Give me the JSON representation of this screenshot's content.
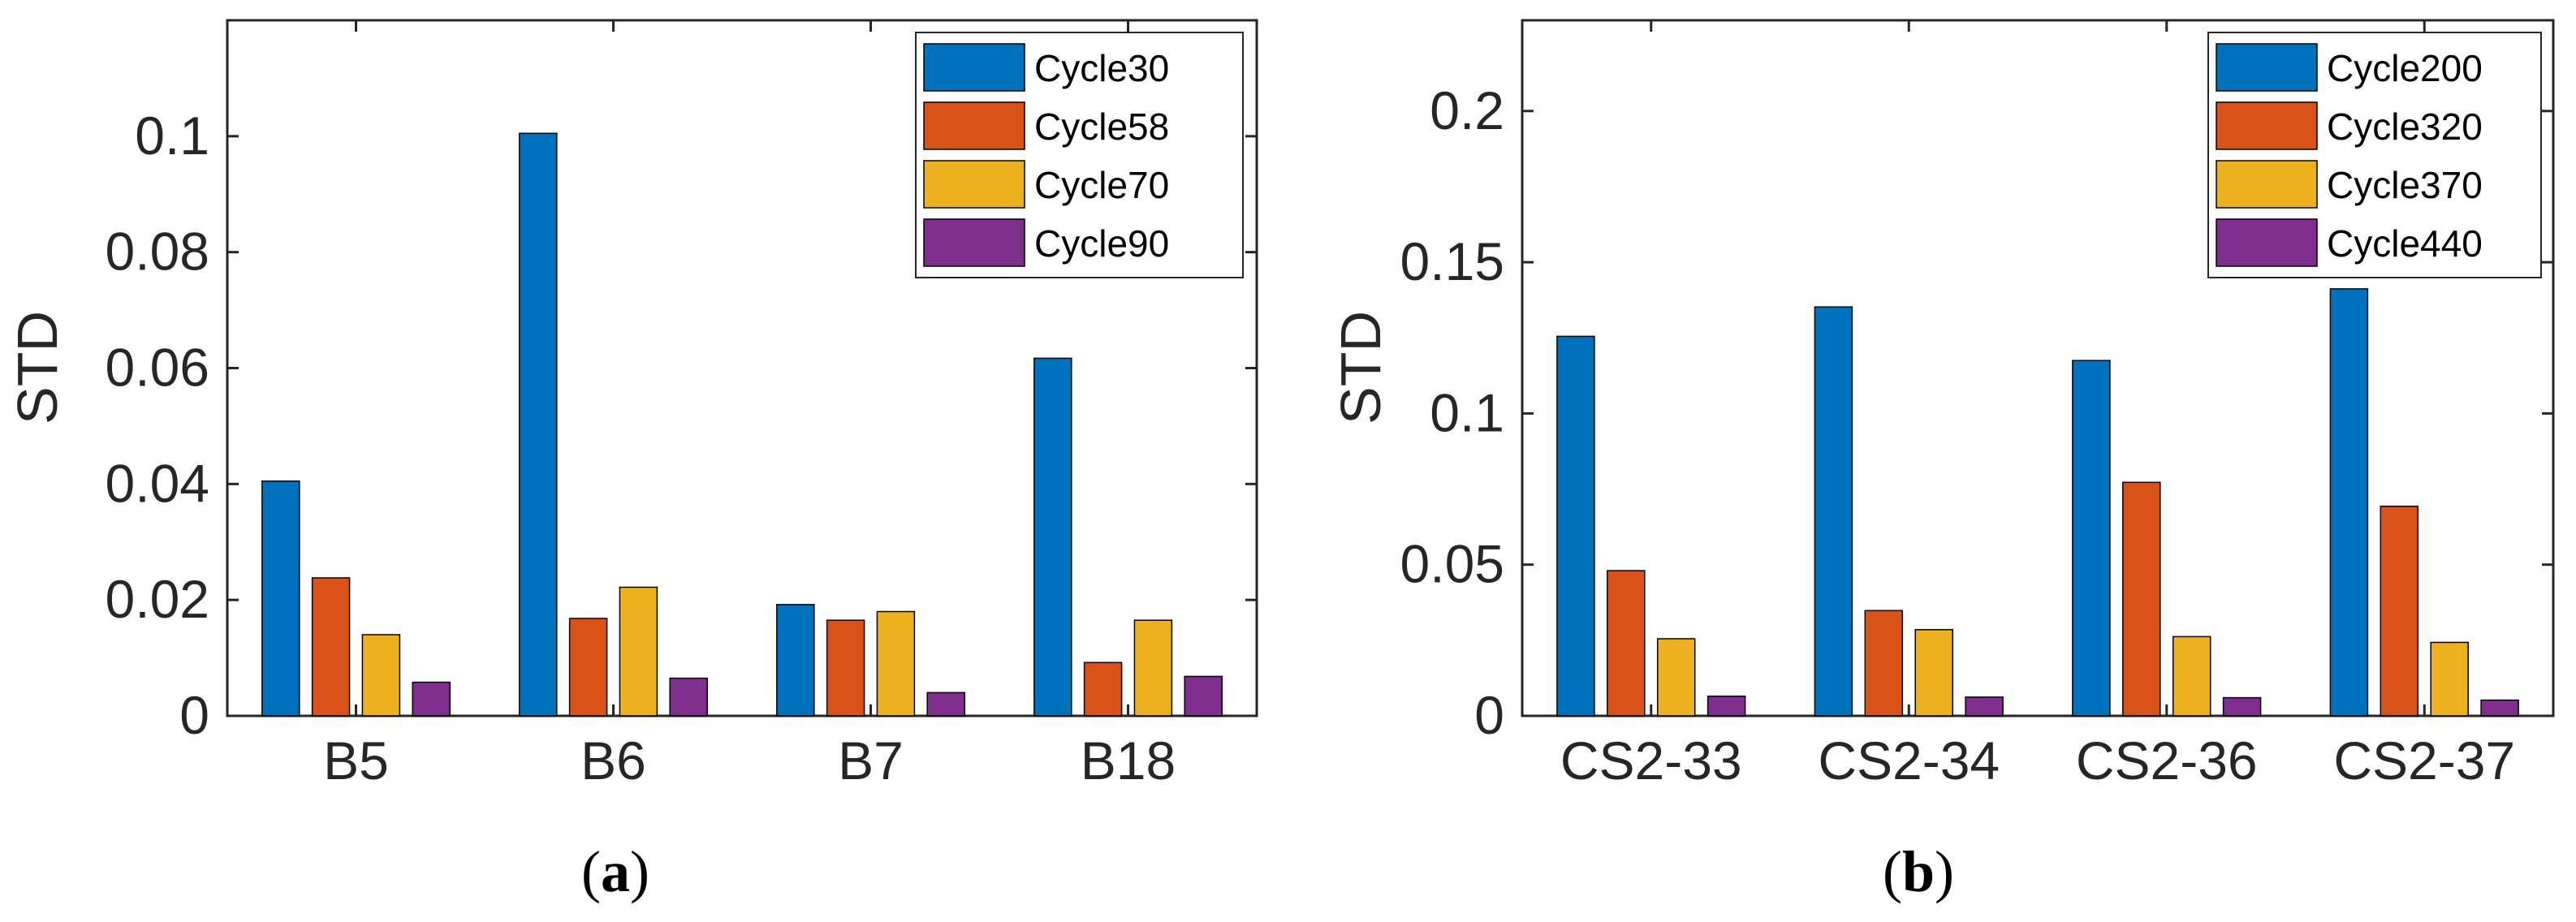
{
  "chart_data": [
    {
      "type": "bar",
      "panel_label": "a",
      "categories": [
        "B5",
        "B6",
        "B7",
        "B18"
      ],
      "ylabel": "STD",
      "xlabel": "",
      "ylim": [
        0,
        0.12
      ],
      "yticks": [
        0,
        0.02,
        0.04,
        0.06,
        0.08,
        0.1
      ],
      "ytick_labels": [
        "0",
        "0.02",
        "0.04",
        "0.06",
        "0.08",
        "0.1"
      ],
      "legend_position": "top-right",
      "grid": false,
      "series": [
        {
          "name": "Cycle30",
          "color": "#0072BD",
          "values": [
            0.0405,
            0.1005,
            0.0192,
            0.0617
          ]
        },
        {
          "name": "Cycle58",
          "color": "#D95319",
          "values": [
            0.0238,
            0.0168,
            0.0165,
            0.0092
          ]
        },
        {
          "name": "Cycle70",
          "color": "#EDB120",
          "values": [
            0.014,
            0.0222,
            0.018,
            0.0165
          ]
        },
        {
          "name": "Cycle90",
          "color": "#7E2F8E",
          "values": [
            0.0058,
            0.0065,
            0.004,
            0.0068
          ]
        }
      ]
    },
    {
      "type": "bar",
      "panel_label": "b",
      "categories": [
        "CS2-33",
        "CS2-34",
        "CS2-36",
        "CS2-37"
      ],
      "ylabel": "STD",
      "xlabel": "",
      "ylim": [
        0,
        0.23
      ],
      "yticks": [
        0,
        0.05,
        0.1,
        0.15,
        0.2
      ],
      "ytick_labels": [
        "0",
        "0.05",
        "0.1",
        "0.15",
        "0.2"
      ],
      "legend_position": "top-right",
      "grid": false,
      "series": [
        {
          "name": "Cycle200",
          "color": "#0072BD",
          "values": [
            0.1255,
            0.1352,
            0.1175,
            0.1412
          ]
        },
        {
          "name": "Cycle320",
          "color": "#D95319",
          "values": [
            0.048,
            0.0348,
            0.0772,
            0.0693
          ]
        },
        {
          "name": "Cycle370",
          "color": "#EDB120",
          "values": [
            0.0255,
            0.0285,
            0.0262,
            0.0243
          ]
        },
        {
          "name": "Cycle440",
          "color": "#7E2F8E",
          "values": [
            0.0065,
            0.0062,
            0.006,
            0.0052
          ]
        }
      ]
    }
  ]
}
